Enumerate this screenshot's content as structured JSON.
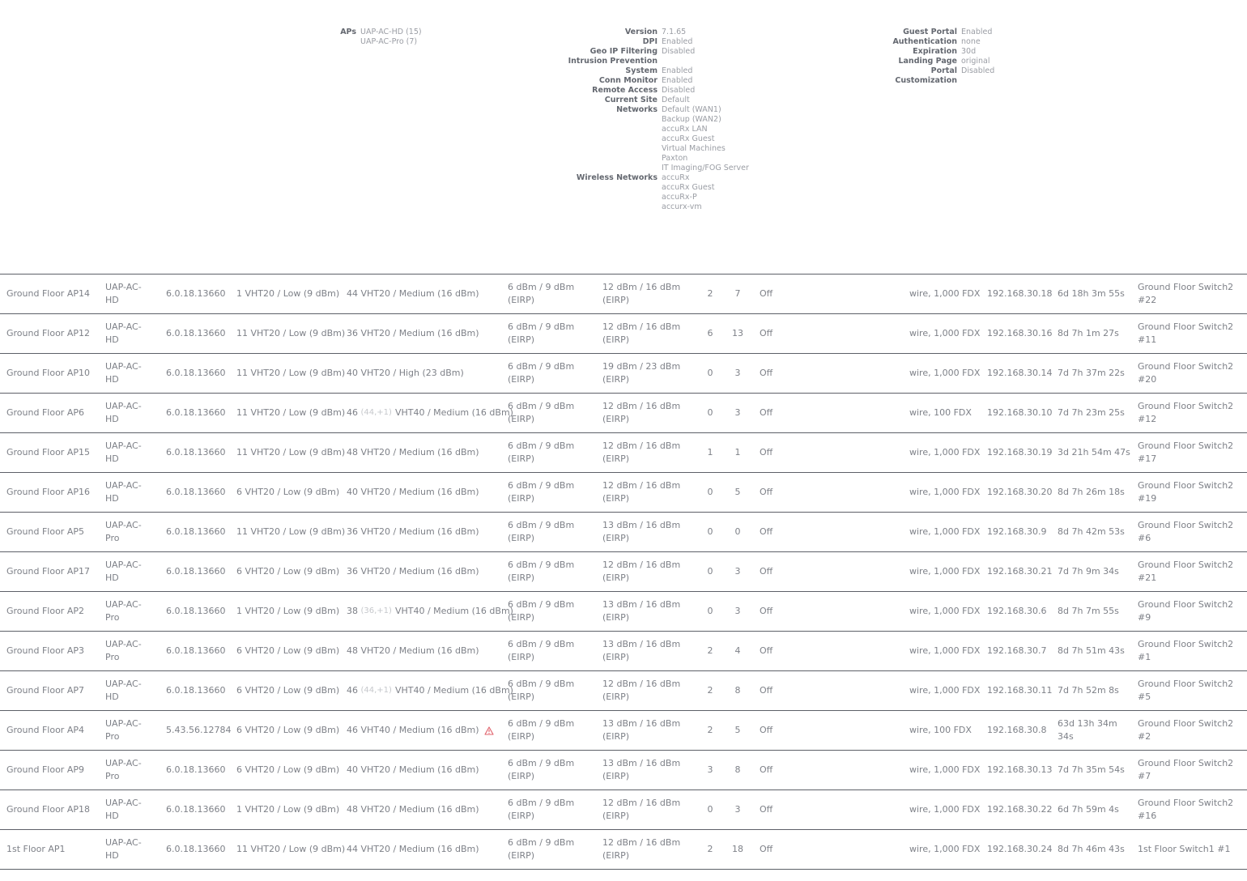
{
  "aps_summary": {
    "label": "APs",
    "values": [
      "UAP-AC-HD (15)",
      "UAP-AC-Pro (7)"
    ]
  },
  "system_info": [
    {
      "label": "Version",
      "values": [
        "7.1.65"
      ]
    },
    {
      "label": "DPI",
      "values": [
        "Enabled"
      ]
    },
    {
      "label": "Geo IP Filtering",
      "values": [
        "Disabled"
      ]
    },
    {
      "label": "Intrusion Prevention",
      "values": [
        ""
      ]
    },
    {
      "label": "System",
      "values": [
        "Enabled"
      ]
    },
    {
      "label": "Conn Monitor",
      "values": [
        "Enabled"
      ]
    },
    {
      "label": "Remote Access",
      "values": [
        "Disabled"
      ]
    },
    {
      "label": "Current Site",
      "values": [
        "Default"
      ]
    },
    {
      "label": "Networks",
      "values": [
        "Default (WAN1)",
        "Backup (WAN2)",
        "accuRx LAN",
        "accuRx Guest",
        "Virtual Machines",
        "Paxton",
        "IT Imaging/FOG Server"
      ]
    },
    {
      "label": "Wireless Networks",
      "values": [
        "accuRx",
        "accuRx Guest",
        "accuRx-P",
        "accurx-vm"
      ]
    }
  ],
  "guest_info": [
    {
      "label": "Guest Portal",
      "values": [
        "Enabled"
      ]
    },
    {
      "label": "Authentication",
      "values": [
        "none"
      ]
    },
    {
      "label": "Expiration",
      "values": [
        "30d"
      ]
    },
    {
      "label": "Landing Page",
      "values": [
        "original"
      ]
    },
    {
      "label": "Portal Customization",
      "values": [
        "Disabled"
      ]
    }
  ],
  "devices": [
    {
      "name": "Ground Floor AP14",
      "model": "UAP-AC-HD",
      "version": "6.0.18.13660",
      "ng_channel": "1 VHT20  / Low (9 dBm)",
      "na_channel": "44 VHT20  / Medium (16 dBm)",
      "na_ext": "",
      "na_channel_rest": "",
      "warn": false,
      "tx_ng": "6 dBm / 9 dBm (EIRP)",
      "tx_na": "12 dBm / 16 dBm (EIRP)",
      "clients_ng": "2",
      "clients_na": "7",
      "mesh": "Off",
      "uplink": "wire, 1,000 FDX",
      "ip": "192.168.30.18",
      "uptime": "6d 18h 3m 55s",
      "switch_port": "Ground Floor Switch2 #22"
    },
    {
      "name": "Ground Floor AP12",
      "model": "UAP-AC-HD",
      "version": "6.0.18.13660",
      "ng_channel": "11 VHT20  / Low (9 dBm)",
      "na_channel": "36 VHT20  / Medium (16 dBm)",
      "na_ext": "",
      "na_channel_rest": "",
      "warn": false,
      "tx_ng": "6 dBm / 9 dBm (EIRP)",
      "tx_na": "12 dBm / 16 dBm (EIRP)",
      "clients_ng": "6",
      "clients_na": "13",
      "mesh": "Off",
      "uplink": "wire, 1,000 FDX",
      "ip": "192.168.30.16",
      "uptime": "8d 7h 1m 27s",
      "switch_port": "Ground Floor Switch2 #11"
    },
    {
      "name": "Ground Floor AP10",
      "model": "UAP-AC-HD",
      "version": "6.0.18.13660",
      "ng_channel": "11 VHT20  / Low (9 dBm)",
      "na_channel": "40 VHT20  / High (23 dBm)",
      "na_ext": "",
      "na_channel_rest": "",
      "warn": false,
      "tx_ng": "6 dBm / 9 dBm (EIRP)",
      "tx_na": "19 dBm / 23 dBm (EIRP)",
      "clients_ng": "0",
      "clients_na": "3",
      "mesh": "Off",
      "uplink": "wire, 1,000 FDX",
      "ip": "192.168.30.14",
      "uptime": "7d 7h 37m 22s",
      "switch_port": "Ground Floor Switch2 #20"
    },
    {
      "name": "Ground Floor AP6",
      "model": "UAP-AC-HD",
      "version": "6.0.18.13660",
      "ng_channel": "11 VHT20  / Low (9 dBm)",
      "na_channel": "46",
      "na_ext": "(44,+1)",
      "na_channel_rest": "VHT40  / Medium (16 dBm)",
      "warn": false,
      "tx_ng": "6 dBm / 9 dBm (EIRP)",
      "tx_na": "12 dBm / 16 dBm (EIRP)",
      "clients_ng": "0",
      "clients_na": "3",
      "mesh": "Off",
      "uplink": "wire, 100 FDX",
      "ip": "192.168.30.10",
      "uptime": "7d 7h 23m 25s",
      "switch_port": "Ground Floor Switch2 #12"
    },
    {
      "name": "Ground Floor AP15",
      "model": "UAP-AC-HD",
      "version": "6.0.18.13660",
      "ng_channel": "11 VHT20  / Low (9 dBm)",
      "na_channel": "48 VHT20  / Medium (16 dBm)",
      "na_ext": "",
      "na_channel_rest": "",
      "warn": false,
      "tx_ng": "6 dBm / 9 dBm (EIRP)",
      "tx_na": "12 dBm / 16 dBm (EIRP)",
      "clients_ng": "1",
      "clients_na": "1",
      "mesh": "Off",
      "uplink": "wire, 1,000 FDX",
      "ip": "192.168.30.19",
      "uptime": "3d 21h 54m 47s",
      "switch_port": "Ground Floor Switch2 #17"
    },
    {
      "name": "Ground Floor AP16",
      "model": "UAP-AC-HD",
      "version": "6.0.18.13660",
      "ng_channel": "6 VHT20  / Low (9 dBm)",
      "na_channel": "40 VHT20  / Medium (16 dBm)",
      "na_ext": "",
      "na_channel_rest": "",
      "warn": false,
      "tx_ng": "6 dBm / 9 dBm (EIRP)",
      "tx_na": "12 dBm / 16 dBm (EIRP)",
      "clients_ng": "0",
      "clients_na": "5",
      "mesh": "Off",
      "uplink": "wire, 1,000 FDX",
      "ip": "192.168.30.20",
      "uptime": "8d 7h 26m 18s",
      "switch_port": "Ground Floor Switch2 #19"
    },
    {
      "name": "Ground Floor AP5",
      "model": "UAP-AC-Pro",
      "version": "6.0.18.13660",
      "ng_channel": "11 VHT20  / Low (9 dBm)",
      "na_channel": "36 VHT20  / Medium (16 dBm)",
      "na_ext": "",
      "na_channel_rest": "",
      "warn": false,
      "tx_ng": "6 dBm / 9 dBm (EIRP)",
      "tx_na": "13 dBm / 16 dBm (EIRP)",
      "clients_ng": "0",
      "clients_na": "0",
      "mesh": "Off",
      "uplink": "wire, 1,000 FDX",
      "ip": "192.168.30.9",
      "uptime": "8d 7h 42m 53s",
      "switch_port": "Ground Floor Switch2 #6"
    },
    {
      "name": "Ground Floor AP17",
      "model": "UAP-AC-HD",
      "version": "6.0.18.13660",
      "ng_channel": "6 VHT20  / Low (9 dBm)",
      "na_channel": "36 VHT20  / Medium (16 dBm)",
      "na_ext": "",
      "na_channel_rest": "",
      "warn": false,
      "tx_ng": "6 dBm / 9 dBm (EIRP)",
      "tx_na": "12 dBm / 16 dBm (EIRP)",
      "clients_ng": "0",
      "clients_na": "3",
      "mesh": "Off",
      "uplink": "wire, 1,000 FDX",
      "ip": "192.168.30.21",
      "uptime": "7d 7h 9m 34s",
      "switch_port": "Ground Floor Switch2 #21"
    },
    {
      "name": "Ground Floor AP2",
      "model": "UAP-AC-Pro",
      "version": "6.0.18.13660",
      "ng_channel": "1 VHT20  / Low (9 dBm)",
      "na_channel": "38",
      "na_ext": "(36,+1)",
      "na_channel_rest": "VHT40  / Medium (16 dBm)",
      "warn": false,
      "tx_ng": "6 dBm / 9 dBm (EIRP)",
      "tx_na": "13 dBm / 16 dBm (EIRP)",
      "clients_ng": "0",
      "clients_na": "3",
      "mesh": "Off",
      "uplink": "wire, 1,000 FDX",
      "ip": "192.168.30.6",
      "uptime": "8d 7h 7m 55s",
      "switch_port": "Ground Floor Switch2 #9"
    },
    {
      "name": "Ground Floor AP3",
      "model": "UAP-AC-Pro",
      "version": "6.0.18.13660",
      "ng_channel": "6 VHT20  / Low (9 dBm)",
      "na_channel": "48 VHT20  / Medium (16 dBm)",
      "na_ext": "",
      "na_channel_rest": "",
      "warn": false,
      "tx_ng": "6 dBm / 9 dBm (EIRP)",
      "tx_na": "13 dBm / 16 dBm (EIRP)",
      "clients_ng": "2",
      "clients_na": "4",
      "mesh": "Off",
      "uplink": "wire, 1,000 FDX",
      "ip": "192.168.30.7",
      "uptime": "8d 7h 51m 43s",
      "switch_port": "Ground Floor Switch2 #1"
    },
    {
      "name": "Ground Floor AP7",
      "model": "UAP-AC-HD",
      "version": "6.0.18.13660",
      "ng_channel": "6 VHT20  / Low (9 dBm)",
      "na_channel": "46",
      "na_ext": "(44,+1)",
      "na_channel_rest": "VHT40  / Medium (16 dBm)",
      "warn": false,
      "tx_ng": "6 dBm / 9 dBm (EIRP)",
      "tx_na": "12 dBm / 16 dBm (EIRP)",
      "clients_ng": "2",
      "clients_na": "8",
      "mesh": "Off",
      "uplink": "wire, 1,000 FDX",
      "ip": "192.168.30.11",
      "uptime": "7d 7h 52m 8s",
      "switch_port": "Ground Floor Switch2 #5"
    },
    {
      "name": "Ground Floor AP4",
      "model": "UAP-AC-Pro",
      "version": "5.43.56.12784",
      "ng_channel": "6 VHT20  / Low (9 dBm)",
      "na_channel": "46 VHT40  / Medium (16 dBm)",
      "na_ext": "",
      "na_channel_rest": "",
      "warn": true,
      "tx_ng": "6 dBm / 9 dBm (EIRP)",
      "tx_na": "13 dBm / 16 dBm (EIRP)",
      "clients_ng": "2",
      "clients_na": "5",
      "mesh": "Off",
      "uplink": "wire, 100 FDX",
      "ip": "192.168.30.8",
      "uptime": "63d 13h 34m 34s",
      "switch_port": "Ground Floor Switch2 #2"
    },
    {
      "name": "Ground Floor AP9",
      "model": "UAP-AC-Pro",
      "version": "6.0.18.13660",
      "ng_channel": "6 VHT20  / Low (9 dBm)",
      "na_channel": "40 VHT20  / Medium (16 dBm)",
      "na_ext": "",
      "na_channel_rest": "",
      "warn": false,
      "tx_ng": "6 dBm / 9 dBm (EIRP)",
      "tx_na": "13 dBm / 16 dBm (EIRP)",
      "clients_ng": "3",
      "clients_na": "8",
      "mesh": "Off",
      "uplink": "wire, 1,000 FDX",
      "ip": "192.168.30.13",
      "uptime": "7d 7h 35m 54s",
      "switch_port": "Ground Floor Switch2 #7"
    },
    {
      "name": "Ground Floor AP18",
      "model": "UAP-AC-HD",
      "version": "6.0.18.13660",
      "ng_channel": "1 VHT20  / Low (9 dBm)",
      "na_channel": "48 VHT20  / Medium (16 dBm)",
      "na_ext": "",
      "na_channel_rest": "",
      "warn": false,
      "tx_ng": "6 dBm / 9 dBm (EIRP)",
      "tx_na": "12 dBm / 16 dBm (EIRP)",
      "clients_ng": "0",
      "clients_na": "3",
      "mesh": "Off",
      "uplink": "wire, 1,000 FDX",
      "ip": "192.168.30.22",
      "uptime": "6d 7h 59m 4s",
      "switch_port": "Ground Floor Switch2 #16"
    },
    {
      "name": "1st Floor AP1",
      "model": "UAP-AC-HD",
      "version": "6.0.18.13660",
      "ng_channel": "11 VHT20  / Low (9 dBm)",
      "na_channel": "44 VHT20  / Medium (16 dBm)",
      "na_ext": "",
      "na_channel_rest": "",
      "warn": false,
      "tx_ng": "6 dBm / 9 dBm (EIRP)",
      "tx_na": "12 dBm / 16 dBm (EIRP)",
      "clients_ng": "2",
      "clients_na": "18",
      "mesh": "Off",
      "uplink": "wire, 1,000 FDX",
      "ip": "192.168.30.24",
      "uptime": "8d 7h 46m 43s",
      "switch_port": "1st Floor Switch1 #1"
    }
  ]
}
